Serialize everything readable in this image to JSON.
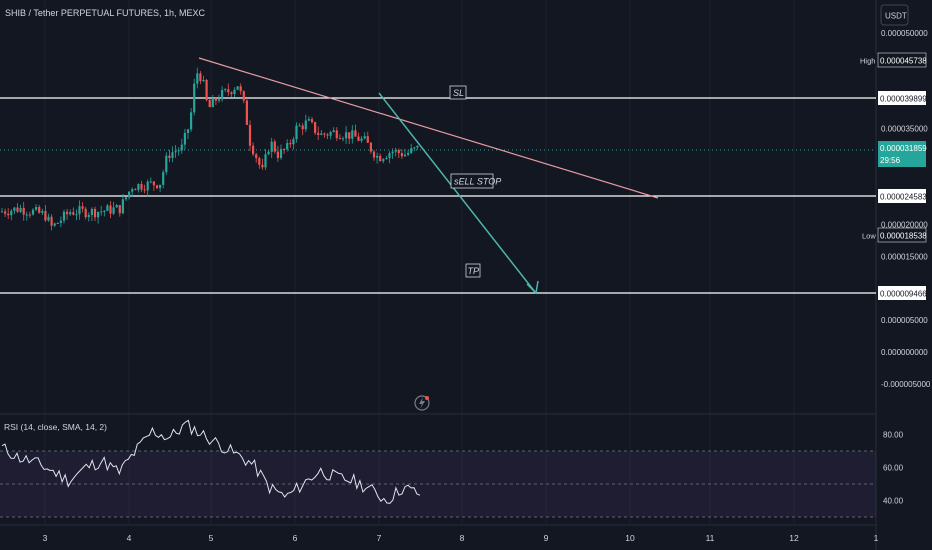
{
  "header": {
    "symbol_title": "SHIB / Tether PERPETUAL FUTURES, 1h, MEXC",
    "currency_button": "USDT"
  },
  "colors": {
    "background": "#131722",
    "bull": "#26a69a",
    "bear": "#ef5350",
    "hline": "#ffffff",
    "trendline": "#e89aa3",
    "arrow": "#4db6ac",
    "rsi_line": "#e0e3eb",
    "rsi_band": "#6a4c93",
    "current_price_tag": "#26a69a"
  },
  "price_axis": {
    "ticks": [
      "0.000050000",
      "0.000035000",
      "0.000020000",
      "0.000015000",
      "0.000005000",
      "0.000000000",
      "-0.000005000"
    ],
    "tick_values": [
      5e-05,
      3.5e-05,
      2e-05,
      1.5e-05,
      5e-06,
      0,
      -5e-06
    ],
    "high_label": "High",
    "high_value": "0.000045738",
    "low_label": "Low",
    "low_value": "0.000018538",
    "current_price": "0.000031859",
    "countdown": "29:56",
    "level_tags": [
      {
        "name": "sl",
        "text": "0.000039899",
        "value": 3.9899e-05
      },
      {
        "name": "sell-stop",
        "text": "0.000024583",
        "value": 2.4583e-05
      },
      {
        "name": "tp",
        "text": "0.000009466",
        "value": 9.466e-06
      }
    ]
  },
  "annotations": {
    "sl": "SL",
    "sell_stop": "sELL STOP",
    "tp": "TP"
  },
  "time_axis": {
    "labels": [
      "3",
      "4",
      "5",
      "6",
      "7",
      "8",
      "9",
      "10",
      "11",
      "12",
      "1"
    ]
  },
  "rsi": {
    "title": "RSI (14, close, SMA, 14, 2)",
    "ticks": [
      "80.00",
      "60.00",
      "40.00"
    ],
    "tick_values": [
      80,
      60,
      40
    ],
    "upper_band": 70,
    "lower_band": 30,
    "mid_line": 50
  },
  "chart_data": {
    "type": "candlestick",
    "x_axis": "date (day of month, 1h candles)",
    "price_ylim": [
      -5e-06,
      5e-05
    ],
    "series": [
      {
        "name": "SHIB/USDT close (approx)",
        "x_days": [
          2.5,
          3.0,
          3.5,
          4.0,
          4.4,
          4.8,
          5.0,
          5.2,
          5.4,
          5.6,
          5.8,
          6.0,
          6.3,
          6.6,
          6.9,
          7.2,
          7.4
        ],
        "values": [
          2.25e-05,
          2.1e-05,
          2.2e-05,
          2.35e-05,
          2.6e-05,
          4.5e-05,
          4e-05,
          4.1e-05,
          4.3e-05,
          2.9e-05,
          3.2e-05,
          3.6e-05,
          3.5e-05,
          3.3e-05,
          3.05e-05,
          3.15e-05,
          3.19e-05
        ]
      }
    ],
    "rsi_values": [
      72,
      66,
      63,
      58,
      52,
      60,
      64,
      57,
      70,
      82,
      78,
      86,
      80,
      74,
      68,
      62,
      48,
      42,
      50,
      58,
      54,
      52,
      47,
      40,
      48,
      44
    ]
  }
}
